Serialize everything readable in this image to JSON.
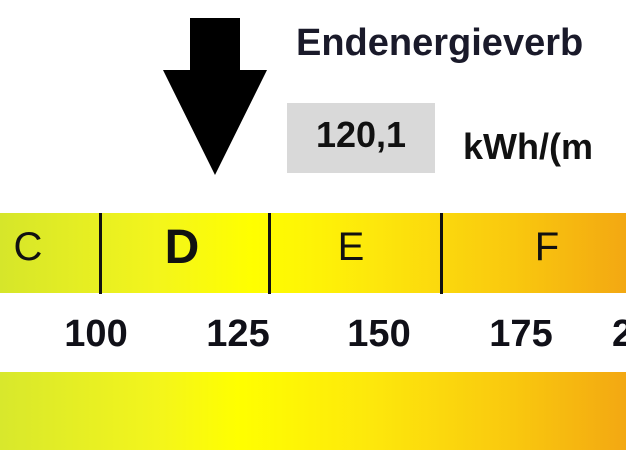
{
  "header": {
    "title": "Endenergieverb",
    "value": "120,1",
    "unit": "kWh/(m"
  },
  "indicator": {
    "icon": "down-arrow-icon",
    "value": 120.1
  },
  "scale": {
    "classes": [
      {
        "label": "C",
        "current": false
      },
      {
        "label": "D",
        "current": true
      },
      {
        "label": "E",
        "current": false
      },
      {
        "label": "F",
        "current": false
      }
    ],
    "ticks": [
      "100",
      "125",
      "150",
      "175",
      "2"
    ]
  },
  "colors": {
    "green_yellow": "#d6e62a",
    "yellow": "#ffff00",
    "orange": "#f3a812",
    "value_box": "#d9d9d9"
  }
}
